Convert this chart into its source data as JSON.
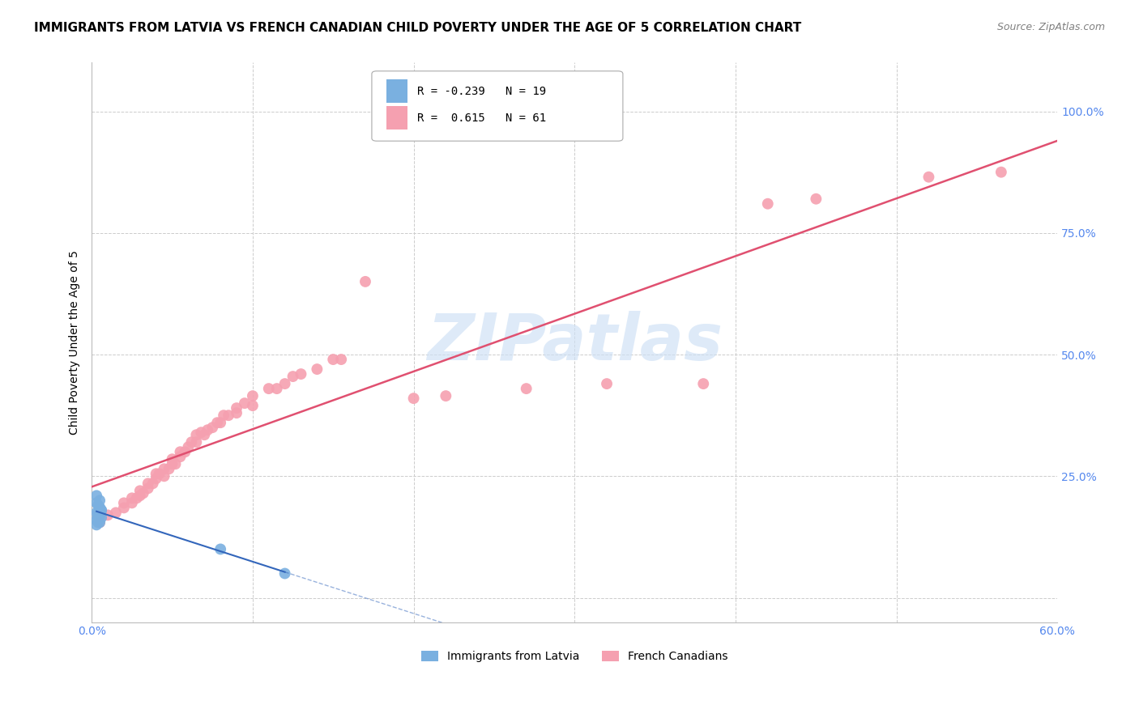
{
  "title": "IMMIGRANTS FROM LATVIA VS FRENCH CANADIAN CHILD POVERTY UNDER THE AGE OF 5 CORRELATION CHART",
  "source": "Source: ZipAtlas.com",
  "ylabel": "Child Poverty Under the Age of 5",
  "xlim": [
    0.0,
    0.6
  ],
  "ylim": [
    -0.05,
    1.1
  ],
  "y_ticks": [
    0.0,
    0.25,
    0.5,
    0.75,
    1.0
  ],
  "y_tick_labels": [
    "",
    "25.0%",
    "50.0%",
    "75.0%",
    "100.0%"
  ],
  "x_ticks": [
    0.0,
    0.1,
    0.2,
    0.3,
    0.4,
    0.5,
    0.6
  ],
  "x_tick_labels": [
    "0.0%",
    "",
    "",
    "",
    "",
    "",
    "60.0%"
  ],
  "legend_blue_label": "Immigrants from Latvia",
  "legend_pink_label": "French Canadians",
  "legend_R_blue": "R = -0.239",
  "legend_N_blue": "N = 19",
  "legend_R_pink": "R =  0.615",
  "legend_N_pink": "N = 61",
  "watermark": "ZIPatlas",
  "blue_scatter_x": [
    0.003,
    0.004,
    0.005,
    0.006,
    0.003,
    0.005,
    0.004,
    0.006,
    0.003,
    0.005,
    0.004,
    0.003,
    0.005,
    0.006,
    0.004,
    0.003,
    0.005,
    0.08,
    0.12
  ],
  "blue_scatter_y": [
    0.195,
    0.19,
    0.185,
    0.18,
    0.175,
    0.17,
    0.165,
    0.165,
    0.16,
    0.155,
    0.155,
    0.15,
    0.185,
    0.18,
    0.175,
    0.21,
    0.2,
    0.1,
    0.05
  ],
  "pink_scatter_x": [
    0.005,
    0.01,
    0.015,
    0.02,
    0.02,
    0.025,
    0.025,
    0.028,
    0.03,
    0.03,
    0.032,
    0.035,
    0.035,
    0.038,
    0.04,
    0.04,
    0.042,
    0.045,
    0.045,
    0.048,
    0.05,
    0.05,
    0.052,
    0.055,
    0.055,
    0.058,
    0.06,
    0.062,
    0.065,
    0.065,
    0.068,
    0.07,
    0.072,
    0.075,
    0.078,
    0.08,
    0.082,
    0.085,
    0.09,
    0.09,
    0.095,
    0.1,
    0.1,
    0.11,
    0.115,
    0.12,
    0.125,
    0.13,
    0.14,
    0.15,
    0.155,
    0.17,
    0.2,
    0.22,
    0.27,
    0.32,
    0.38,
    0.42,
    0.45,
    0.52,
    0.565
  ],
  "pink_scatter_y": [
    0.155,
    0.17,
    0.175,
    0.185,
    0.195,
    0.195,
    0.205,
    0.205,
    0.21,
    0.22,
    0.215,
    0.225,
    0.235,
    0.235,
    0.245,
    0.255,
    0.255,
    0.265,
    0.25,
    0.265,
    0.275,
    0.285,
    0.275,
    0.29,
    0.3,
    0.3,
    0.31,
    0.32,
    0.32,
    0.335,
    0.34,
    0.335,
    0.345,
    0.35,
    0.36,
    0.36,
    0.375,
    0.375,
    0.39,
    0.38,
    0.4,
    0.395,
    0.415,
    0.43,
    0.43,
    0.44,
    0.455,
    0.46,
    0.47,
    0.49,
    0.49,
    0.65,
    0.41,
    0.415,
    0.43,
    0.44,
    0.44,
    0.81,
    0.82,
    0.865,
    0.875
  ],
  "blue_color": "#7ab0e0",
  "pink_color": "#f5a0b0",
  "blue_line_color": "#3366bb",
  "pink_line_color": "#e05070",
  "grid_color": "#cccccc",
  "background_color": "#ffffff",
  "title_fontsize": 11,
  "tick_color": "#5588ee"
}
